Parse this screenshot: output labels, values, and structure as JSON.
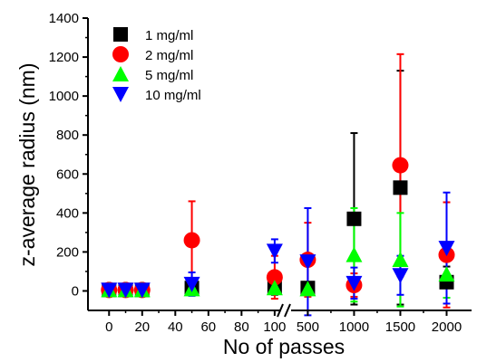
{
  "chart_data": {
    "type": "scatter",
    "xlabel": "No of passes",
    "ylabel": "z-average radius (nm)",
    "ylim": [
      -100,
      1400
    ],
    "y_ticks": [
      0,
      200,
      400,
      600,
      800,
      1000,
      1200,
      1400
    ],
    "x_axis_break": true,
    "x_segments": [
      {
        "xlim": [
          -10,
          105
        ],
        "ticks": [
          0,
          20,
          40,
          60,
          80,
          100
        ],
        "tick_labels": [
          "0",
          "20",
          "40",
          "60",
          "80",
          "100"
        ]
      },
      {
        "xlim": [
          300,
          2250
        ],
        "ticks": [
          500,
          1000,
          1500,
          2000
        ],
        "tick_labels": [
          "500",
          "1000",
          "1500",
          "2000"
        ]
      }
    ],
    "legend_position": "top-left",
    "series": [
      {
        "name": "1 mg/ml",
        "marker": "square",
        "color": "#000000",
        "points": [
          {
            "x": 0,
            "y": 5,
            "err": 12
          },
          {
            "x": 10,
            "y": 5,
            "err": 10
          },
          {
            "x": 20,
            "y": 5,
            "err": 10
          },
          {
            "x": 50,
            "y": 15,
            "err": 30
          },
          {
            "x": 100,
            "y": 20,
            "err": 40
          },
          {
            "x": 500,
            "y": 15,
            "err": 30
          },
          {
            "x": 1000,
            "y": 370,
            "err": 440
          },
          {
            "x": 1500,
            "y": 530,
            "err": 600
          },
          {
            "x": 2000,
            "y": 45,
            "err": 80
          }
        ]
      },
      {
        "name": "2 mg/ml",
        "marker": "circle",
        "color": "#ff0000",
        "points": [
          {
            "x": 0,
            "y": 5,
            "err": 10
          },
          {
            "x": 10,
            "y": 5,
            "err": 10
          },
          {
            "x": 20,
            "y": 5,
            "err": 10
          },
          {
            "x": 50,
            "y": 260,
            "err": 200
          },
          {
            "x": 100,
            "y": 70,
            "err": 110
          },
          {
            "x": 500,
            "y": 160,
            "err": 190
          },
          {
            "x": 1000,
            "y": 30,
            "err": 60
          },
          {
            "x": 1500,
            "y": 645,
            "err": 570
          },
          {
            "x": 2000,
            "y": 185,
            "err": 270
          }
        ]
      },
      {
        "name": "5 mg/ml",
        "marker": "triangle-up",
        "color": "#00ff00",
        "points": [
          {
            "x": 0,
            "y": 5,
            "err": 10
          },
          {
            "x": 10,
            "y": 5,
            "err": 10
          },
          {
            "x": 20,
            "y": 5,
            "err": 10
          },
          {
            "x": 50,
            "y": 10,
            "err": 25
          },
          {
            "x": 100,
            "y": 15,
            "err": 30
          },
          {
            "x": 500,
            "y": 10,
            "err": 30
          },
          {
            "x": 1000,
            "y": 185,
            "err": 240
          },
          {
            "x": 1500,
            "y": 160,
            "err": 240
          },
          {
            "x": 2000,
            "y": 85,
            "err": 120
          }
        ]
      },
      {
        "name": "10 mg/ml",
        "marker": "triangle-down",
        "color": "#0000ff",
        "points": [
          {
            "x": 0,
            "y": 5,
            "err": 20
          },
          {
            "x": 10,
            "y": 5,
            "err": 15
          },
          {
            "x": 20,
            "y": 5,
            "err": 15
          },
          {
            "x": 50,
            "y": 35,
            "err": 60
          },
          {
            "x": 100,
            "y": 205,
            "err": 60
          },
          {
            "x": 500,
            "y": 150,
            "err": 275
          },
          {
            "x": 1000,
            "y": 40,
            "err": 80
          },
          {
            "x": 1500,
            "y": 80,
            "err": 100
          },
          {
            "x": 2000,
            "y": 220,
            "err": 285
          }
        ]
      }
    ]
  }
}
